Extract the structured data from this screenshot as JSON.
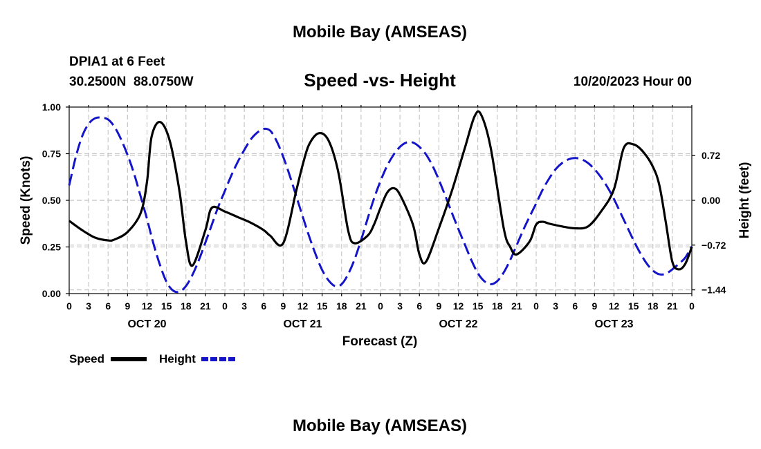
{
  "header": {
    "title": "Mobile Bay (AMSEAS)",
    "station": "DPIA1 at 6 Feet",
    "coords": "30.2500N  88.0750W",
    "subtitle": "Speed -vs- Height",
    "datetime": "10/20/2023 Hour 00"
  },
  "footer": {
    "title": "Mobile Bay (AMSEAS)"
  },
  "legend": {
    "speed_label": "Speed",
    "height_label": "Height"
  },
  "colors": {
    "speed": "#000000",
    "height": "#1414c8"
  },
  "chart_data": {
    "type": "line",
    "title": "Speed -vs- Height",
    "xlabel": "Forecast (Z)",
    "ylabel": "Speed (Knots)",
    "y2label": "Height (feet)",
    "xlim": [
      0,
      96
    ],
    "ylim": [
      0,
      1.0
    ],
    "y2lim": [
      -1.5,
      1.5
    ],
    "x_ticks": [
      0,
      3,
      6,
      9,
      12,
      15,
      18,
      21,
      24,
      27,
      30,
      33,
      36,
      39,
      42,
      45,
      48,
      51,
      54,
      57,
      60,
      63,
      66,
      69,
      72,
      75,
      78,
      81,
      84,
      87,
      90,
      93,
      96
    ],
    "x_tick_labels": [
      "0",
      "3",
      "6",
      "9",
      "12",
      "15",
      "18",
      "21",
      "0",
      "3",
      "6",
      "9",
      "12",
      "15",
      "18",
      "21",
      "0",
      "3",
      "6",
      "9",
      "12",
      "15",
      "18",
      "21",
      "0",
      "3",
      "6",
      "9",
      "12",
      "15",
      "18",
      "21",
      "0"
    ],
    "day_labels": [
      {
        "label": "OCT 20",
        "hour": 12
      },
      {
        "label": "OCT 21",
        "hour": 36
      },
      {
        "label": "OCT 22",
        "hour": 60
      },
      {
        "label": "OCT 23",
        "hour": 84
      }
    ],
    "y_ticks": [
      0.0,
      0.25,
      0.5,
      0.75,
      1.0
    ],
    "y_tick_labels": [
      "0.00",
      "0.25",
      "0.50",
      "0.75",
      "1.00"
    ],
    "y2_ticks": [
      0.72,
      0.0,
      -0.72,
      -1.44
    ],
    "y2_tick_labels": [
      "0.72",
      "0.00",
      "−0.72",
      "−1.44"
    ],
    "grid": true,
    "legend_position": "bottom-left",
    "series": [
      {
        "name": "Speed",
        "axis": "left",
        "style": "solid",
        "x": [
          0,
          2,
          4,
          6,
          7,
          9,
          11,
          12,
          12.7,
          14,
          15.5,
          17,
          18,
          19,
          21,
          22,
          24,
          26,
          28,
          30,
          31,
          33,
          35,
          36,
          37,
          38.5,
          40,
          41.5,
          43,
          44,
          46,
          47,
          48,
          49,
          50,
          51,
          53,
          54,
          55,
          57,
          59,
          61,
          62.5,
          63.5,
          65,
          67,
          68,
          69,
          71,
          72,
          73,
          74,
          76,
          78,
          80,
          82,
          84,
          85.5,
          87,
          88.5,
          90,
          91,
          92,
          93,
          94,
          95,
          96
        ],
        "y": [
          0.39,
          0.34,
          0.3,
          0.285,
          0.29,
          0.33,
          0.43,
          0.6,
          0.84,
          0.92,
          0.82,
          0.55,
          0.28,
          0.15,
          0.34,
          0.46,
          0.44,
          0.41,
          0.38,
          0.34,
          0.31,
          0.27,
          0.55,
          0.69,
          0.8,
          0.86,
          0.82,
          0.65,
          0.34,
          0.27,
          0.31,
          0.37,
          0.46,
          0.54,
          0.565,
          0.53,
          0.37,
          0.21,
          0.17,
          0.35,
          0.55,
          0.78,
          0.95,
          0.96,
          0.78,
          0.35,
          0.25,
          0.21,
          0.28,
          0.37,
          0.385,
          0.375,
          0.36,
          0.35,
          0.36,
          0.44,
          0.56,
          0.78,
          0.8,
          0.76,
          0.68,
          0.58,
          0.38,
          0.17,
          0.13,
          0.16,
          0.25
        ]
      },
      {
        "name": "Height",
        "axis": "right",
        "style": "dashed",
        "x": [
          0,
          1,
          2,
          3,
          4,
          5,
          6,
          7,
          8,
          9,
          10,
          11,
          12,
          13,
          14,
          15,
          16,
          17,
          18,
          19,
          20,
          21,
          22,
          23,
          24,
          25,
          26,
          27,
          28,
          29,
          30,
          31,
          32,
          33,
          34,
          35,
          36,
          37,
          38,
          39,
          40,
          41,
          42,
          43,
          44,
          45,
          46,
          47,
          48,
          49,
          50,
          51,
          52,
          53,
          54,
          55,
          56,
          57,
          58,
          59,
          60,
          61,
          62,
          63,
          64,
          65,
          66,
          67,
          68,
          69,
          70,
          71,
          72,
          73,
          74,
          75,
          76,
          77,
          78,
          79,
          80,
          81,
          82,
          83,
          84,
          85,
          86,
          87,
          88,
          89,
          90,
          91,
          92,
          93,
          94,
          95,
          96
        ],
        "y": [
          0.24,
          0.69,
          1.03,
          1.23,
          1.32,
          1.33,
          1.3,
          1.18,
          0.98,
          0.73,
          0.43,
          0.07,
          -0.3,
          -0.7,
          -1.04,
          -1.31,
          -1.45,
          -1.47,
          -1.38,
          -1.2,
          -0.96,
          -0.68,
          -0.39,
          -0.1,
          0.15,
          0.4,
          0.62,
          0.81,
          0.98,
          1.09,
          1.15,
          1.12,
          0.95,
          0.7,
          0.4,
          0.07,
          -0.26,
          -0.58,
          -0.87,
          -1.12,
          -1.29,
          -1.38,
          -1.35,
          -1.19,
          -0.95,
          -0.64,
          -0.3,
          0.03,
          0.31,
          0.55,
          0.73,
          0.86,
          0.93,
          0.93,
          0.86,
          0.74,
          0.56,
          0.33,
          0.07,
          -0.2,
          -0.46,
          -0.71,
          -0.96,
          -1.17,
          -1.3,
          -1.35,
          -1.3,
          -1.16,
          -0.96,
          -0.72,
          -0.48,
          -0.26,
          -0.05,
          0.17,
          0.35,
          0.5,
          0.6,
          0.66,
          0.68,
          0.66,
          0.6,
          0.5,
          0.37,
          0.21,
          0.02,
          -0.2,
          -0.42,
          -0.64,
          -0.84,
          -1.01,
          -1.13,
          -1.19,
          -1.18,
          -1.11,
          -1.02,
          -0.92,
          -0.74
        ]
      }
    ]
  }
}
